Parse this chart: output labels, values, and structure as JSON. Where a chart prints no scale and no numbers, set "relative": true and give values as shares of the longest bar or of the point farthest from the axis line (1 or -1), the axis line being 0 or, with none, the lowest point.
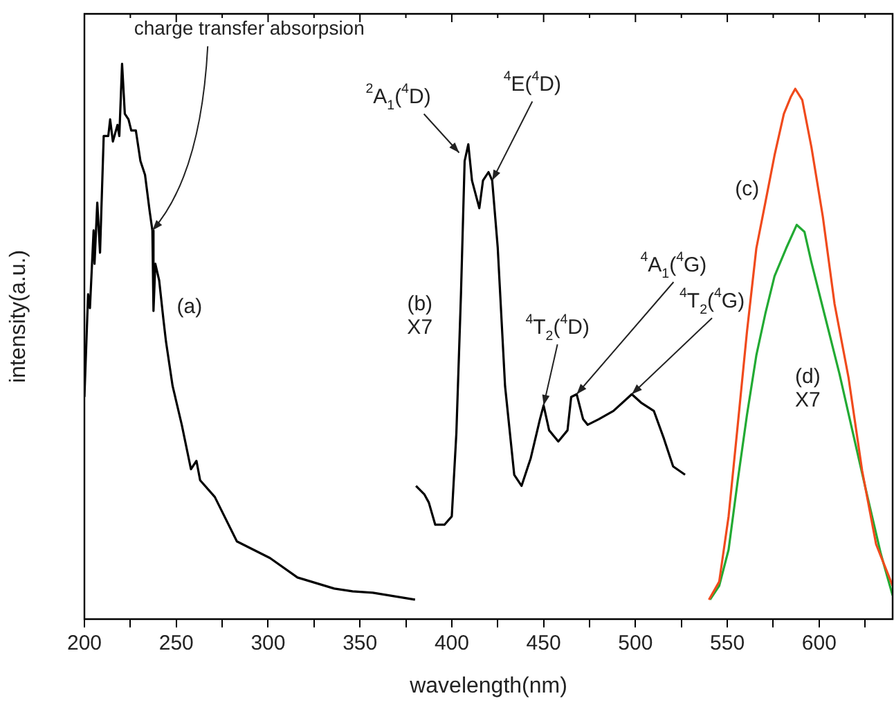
{
  "chart_data": {
    "type": "line",
    "relative": true,
    "xlabel": "wavelength(nm)",
    "ylabel": "intensity(a.u.)",
    "xlim": [
      200,
      640
    ],
    "xticks": [
      200,
      {
        "value": 225,
        "label": null
      },
      250,
      {
        "value": 275,
        "label": null
      },
      300,
      {
        "value": 325,
        "label": null
      },
      350,
      {
        "value": 375,
        "label": null
      },
      400,
      {
        "value": 425,
        "label": null
      },
      450,
      {
        "value": 475,
        "label": null
      },
      500,
      {
        "value": 525,
        "label": null
      },
      550,
      {
        "value": 575,
        "label": null
      },
      600,
      {
        "value": 625,
        "label": null
      }
    ],
    "grid": false,
    "marker": "none",
    "line_style": "solid",
    "series": [
      {
        "name": "(a)",
        "color": "#000000",
        "x": [
          200,
          202,
          203,
          205,
          205.5,
          207,
          208.5,
          210.5,
          213,
          214,
          215.5,
          218,
          219,
          220.5,
          222,
          224,
          225.5,
          228,
          230.5,
          233,
          235.5,
          237,
          237.6,
          238.6,
          240.7,
          243,
          244.4,
          248,
          253,
          258,
          261,
          263,
          271,
          283,
          301,
          316,
          336,
          346,
          357,
          380
        ],
        "values": [
          0.4,
          0.585,
          0.56,
          0.7,
          0.64,
          0.75,
          0.66,
          0.87,
          0.87,
          0.9,
          0.86,
          0.89,
          0.87,
          1.0,
          0.91,
          0.9,
          0.88,
          0.88,
          0.825,
          0.8,
          0.735,
          0.7,
          0.555,
          0.64,
          0.61,
          0.54,
          0.5,
          0.42,
          0.35,
          0.27,
          0.285,
          0.25,
          0.22,
          0.14,
          0.11,
          0.075,
          0.055,
          0.05,
          0.0475,
          0.035
        ]
      },
      {
        "name": "(b) X7",
        "color": "#000000",
        "x": [
          380.5,
          382,
          385,
          387.5,
          391,
          396,
          400,
          402.5,
          405,
          407,
          409,
          411,
          415,
          417,
          420,
          422,
          425,
          429,
          434,
          438,
          443,
          448,
          450,
          453,
          458,
          463,
          465,
          468,
          471.5,
          474,
          480,
          488,
          498,
          503,
          510,
          515.5,
          520.5,
          527
        ],
        "values": [
          0.24,
          0.235,
          0.225,
          0.21,
          0.17,
          0.17,
          0.185,
          0.335,
          0.585,
          0.825,
          0.855,
          0.79,
          0.74,
          0.79,
          0.805,
          0.79,
          0.67,
          0.42,
          0.26,
          0.24,
          0.29,
          0.36,
          0.385,
          0.34,
          0.32,
          0.34,
          0.4,
          0.405,
          0.36,
          0.35,
          0.36,
          0.375,
          0.405,
          0.39,
          0.375,
          0.325,
          0.275,
          0.26
        ]
      },
      {
        "name": "(c)",
        "color": "#f04a1c",
        "x": [
          540,
          545.6,
          550.7,
          555.7,
          560.7,
          565.8,
          570.7,
          575.7,
          580.8,
          584.5,
          587,
          590.8,
          595.8,
          602,
          608.4,
          616,
          623.4,
          631,
          640
        ],
        "values": [
          0.035,
          0.0675,
          0.185,
          0.35,
          0.5175,
          0.6675,
          0.75,
          0.835,
          0.91,
          0.94,
          0.955,
          0.935,
          0.85,
          0.725,
          0.5675,
          0.435,
          0.2675,
          0.135,
          0.06
        ]
      },
      {
        "name": "(d) X7",
        "color": "#22aa33",
        "x": [
          540.6,
          545.6,
          550.7,
          555.7,
          560.7,
          565.8,
          570.7,
          575.7,
          582,
          587.8,
          592,
          595.8,
          603.4,
          611,
          618.4,
          626,
          633.6,
          640
        ],
        "values": [
          0.035,
          0.06,
          0.125,
          0.25,
          0.3675,
          0.475,
          0.55,
          0.6175,
          0.6675,
          0.71,
          0.6975,
          0.6425,
          0.5425,
          0.4425,
          0.335,
          0.225,
          0.1175,
          0.0425
        ]
      }
    ],
    "annotations": [
      {
        "text": "charge transfer absorpsion",
        "x": 237,
        "y": 0.7
      },
      {
        "text": "$^{2}$A$_{1}$($^{4}$D)",
        "x": 404,
        "y": 0.84
      },
      {
        "text": "$^{4}$E($^{4}$D)",
        "x": 422,
        "y": 0.79
      },
      {
        "text": "$^{4}$T$_{2}$($^{4}$D)",
        "x": 450,
        "y": 0.385
      },
      {
        "text": "$^{4}$A$_{1}$($^{4}$G)",
        "x": 468,
        "y": 0.405
      },
      {
        "text": "$^{4}$T$_{2}$($^{4}$G)",
        "x": 498,
        "y": 0.405
      }
    ]
  }
}
